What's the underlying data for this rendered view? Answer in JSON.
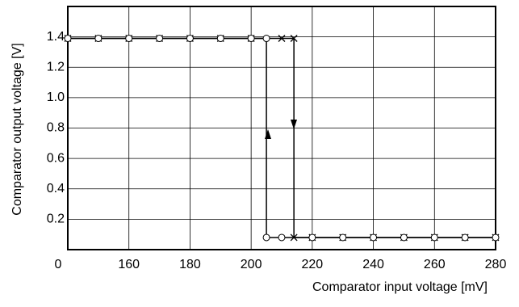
{
  "chart_data": {
    "type": "line",
    "xlabel": "Comparator input voltage [mV]",
    "ylabel": "Comparator output voltage [V]",
    "series": [
      {
        "marker": "x",
        "color": "#000000",
        "x": [
          140,
          150,
          160,
          170,
          180,
          190,
          200,
          210,
          214,
          214,
          220,
          230,
          240,
          250,
          260,
          270,
          280
        ],
        "values": [
          1.39,
          1.39,
          1.39,
          1.39,
          1.39,
          1.39,
          1.39,
          1.39,
          1.39,
          0.08,
          0.08,
          0.08,
          0.08,
          0.08,
          0.08,
          0.08,
          0.08
        ]
      },
      {
        "marker": "o",
        "color": "#000000",
        "x": [
          140,
          150,
          160,
          170,
          180,
          190,
          200,
          205,
          205,
          210,
          220,
          230,
          240,
          250,
          260,
          270,
          280
        ],
        "values": [
          1.39,
          1.39,
          1.39,
          1.39,
          1.39,
          1.39,
          1.39,
          1.39,
          0.08,
          0.08,
          0.08,
          0.08,
          0.08,
          0.08,
          0.08,
          0.08,
          0.08
        ]
      }
    ],
    "xlim": [
      140,
      280
    ],
    "xticks": [
      {
        "value": 140,
        "label": "0"
      },
      160,
      180,
      200,
      220,
      240,
      260,
      280
    ],
    "ylim": [
      0,
      1.6
    ],
    "yticks": [
      0.2,
      0.4,
      0.6,
      0.8,
      {
        "value": 1.0,
        "label": "1.0"
      },
      1.2,
      1.4
    ],
    "grid": true
  }
}
